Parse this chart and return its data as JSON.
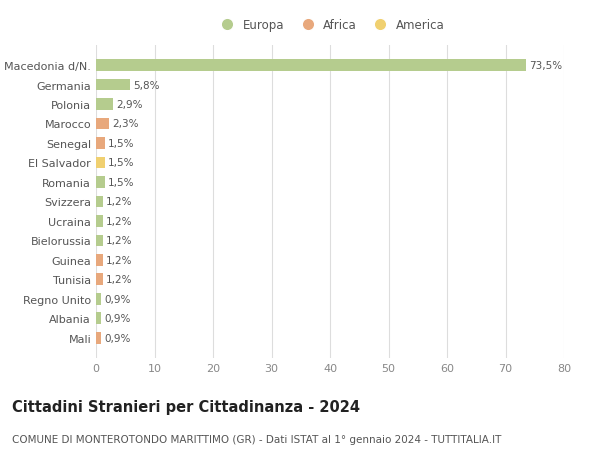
{
  "categories": [
    "Macedonia d/N.",
    "Germania",
    "Polonia",
    "Marocco",
    "Senegal",
    "El Salvador",
    "Romania",
    "Svizzera",
    "Ucraina",
    "Bielorussia",
    "Guinea",
    "Tunisia",
    "Regno Unito",
    "Albania",
    "Mali"
  ],
  "values": [
    73.5,
    5.8,
    2.9,
    2.3,
    1.5,
    1.5,
    1.5,
    1.2,
    1.2,
    1.2,
    1.2,
    1.2,
    0.9,
    0.9,
    0.9
  ],
  "labels": [
    "73,5%",
    "5,8%",
    "2,9%",
    "2,3%",
    "1,5%",
    "1,5%",
    "1,5%",
    "1,2%",
    "1,2%",
    "1,2%",
    "1,2%",
    "1,2%",
    "0,9%",
    "0,9%",
    "0,9%"
  ],
  "continent": [
    "Europa",
    "Europa",
    "Europa",
    "Africa",
    "Africa",
    "America",
    "Europa",
    "Europa",
    "Europa",
    "Europa",
    "Africa",
    "Africa",
    "Europa",
    "Europa",
    "Africa"
  ],
  "colors": {
    "Europa": "#b5cc8e",
    "Africa": "#e8a87c",
    "America": "#f0d070"
  },
  "title": "Cittadini Stranieri per Cittadinanza - 2024",
  "subtitle": "COMUNE DI MONTEROTONDO MARITTIMO (GR) - Dati ISTAT al 1° gennaio 2024 - TUTTITALIA.IT",
  "xlim": [
    0,
    80
  ],
  "xticks": [
    0,
    10,
    20,
    30,
    40,
    50,
    60,
    70,
    80
  ],
  "background_color": "#ffffff",
  "grid_color": "#dddddd",
  "title_fontsize": 10.5,
  "subtitle_fontsize": 7.5,
  "tick_fontsize": 8,
  "label_fontsize": 7.5
}
